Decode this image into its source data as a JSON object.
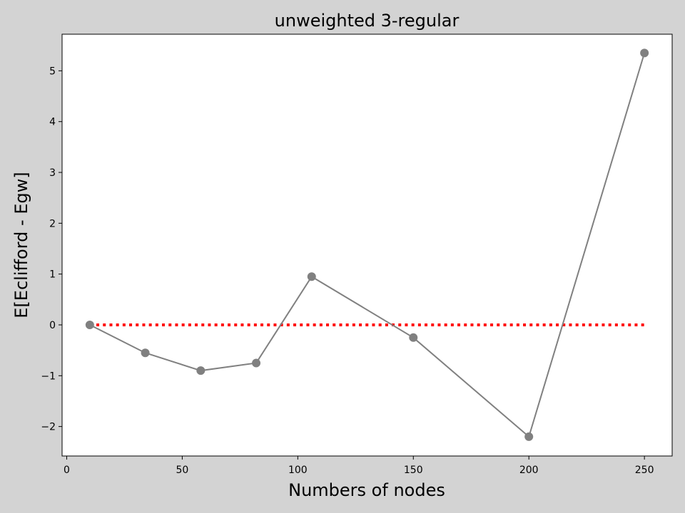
{
  "chart_data": {
    "type": "line",
    "title": "unweighted 3-regular",
    "xlabel": "Numbers of nodes",
    "ylabel": "E[Eclifford - Egw]",
    "xlim": [
      -2,
      262
    ],
    "ylim": [
      -2.58,
      5.72
    ],
    "xticks": [
      0,
      50,
      100,
      150,
      200,
      250
    ],
    "yticks": [
      -2,
      -1,
      0,
      1,
      2,
      3,
      4,
      5
    ],
    "ytick_labels": [
      "−2",
      "−1",
      "0",
      "1",
      "2",
      "3",
      "4",
      "5"
    ],
    "series": [
      {
        "style": "solid-markers",
        "color": "#808080",
        "x": [
          10,
          34,
          58,
          82,
          106,
          150,
          200,
          250
        ],
        "y": [
          0.0,
          -0.55,
          -0.9,
          -0.75,
          0.95,
          -0.25,
          -2.2,
          5.35
        ]
      },
      {
        "style": "dotted",
        "color": "#ff0000",
        "x": [
          10,
          250
        ],
        "y": [
          0.0,
          0.0
        ]
      }
    ],
    "grid": false,
    "background": "#d3d3d3",
    "plot_background": "#ffffff"
  }
}
